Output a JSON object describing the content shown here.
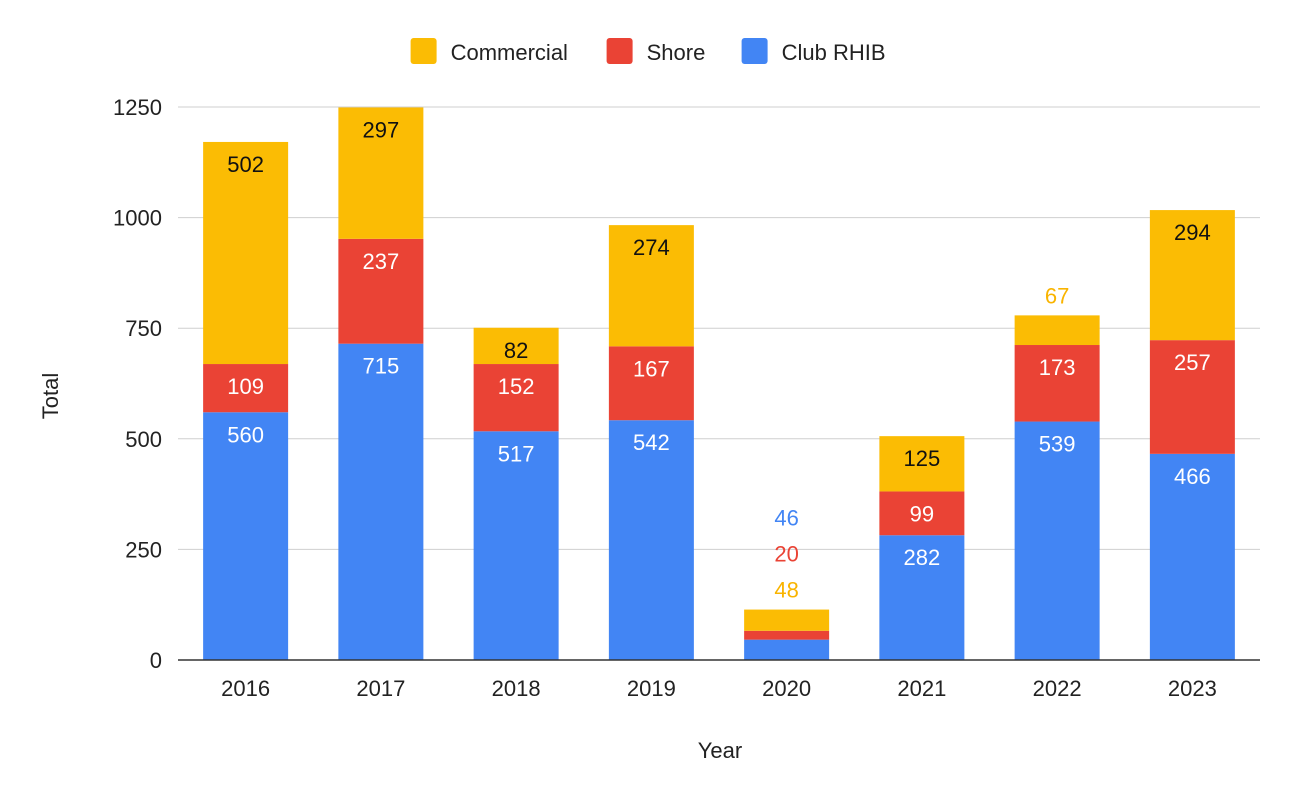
{
  "chart_data": {
    "type": "bar",
    "stacked": true,
    "categories": [
      "2016",
      "2017",
      "2018",
      "2019",
      "2020",
      "2021",
      "2022",
      "2023"
    ],
    "series": [
      {
        "name": "Club RHIB",
        "color": "#4285F4",
        "values": [
          560,
          715,
          517,
          542,
          46,
          282,
          539,
          466
        ]
      },
      {
        "name": "Shore",
        "color": "#EA4335",
        "values": [
          109,
          237,
          152,
          167,
          20,
          99,
          173,
          257
        ]
      },
      {
        "name": "Commercial",
        "color": "#FBBC04",
        "values": [
          502,
          297,
          82,
          274,
          48,
          125,
          67,
          294
        ]
      }
    ],
    "legend_order": [
      "Commercial",
      "Shore",
      "Club RHIB"
    ],
    "xlabel": "Year",
    "ylabel": "Total",
    "ylim": [
      0,
      1250
    ],
    "yticks": [
      0,
      250,
      500,
      750,
      1000,
      1250
    ],
    "grid": true,
    "legend_position": "top-center",
    "data_labels": true
  }
}
